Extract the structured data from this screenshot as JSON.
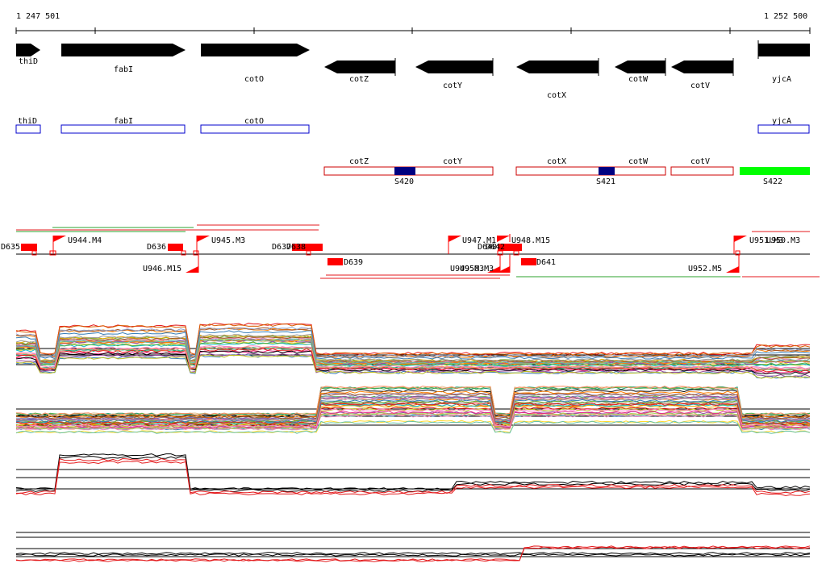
{
  "ruler": {
    "start_label": "1 247 501",
    "end_label": "1 252 500"
  },
  "genes": [
    {
      "name": "thiD",
      "dir": "right"
    },
    {
      "name": "fabI",
      "dir": "right"
    },
    {
      "name": "cotO",
      "dir": "right"
    },
    {
      "name": "cotZ",
      "dir": "left"
    },
    {
      "name": "cotY",
      "dir": "left"
    },
    {
      "name": "cotX",
      "dir": "left"
    },
    {
      "name": "cotW",
      "dir": "left"
    },
    {
      "name": "cotV",
      "dir": "left"
    },
    {
      "name": "yjcA",
      "dir": "right"
    }
  ],
  "blue_boxes": [
    "thiD",
    "fabI",
    "cotO",
    "yjcA"
  ],
  "red_boxes": [
    {
      "labels": [
        "cotZ",
        "cotY"
      ],
      "segment": "S420"
    },
    {
      "labels": [
        "cotX",
        "cotW"
      ],
      "segment": "S421"
    },
    {
      "labels": [
        "cotV"
      ],
      "segment": ""
    }
  ],
  "green_segment": "S422",
  "features_top": [
    "D635",
    "U944.M4",
    "D636",
    "U945.M3",
    "D637",
    "D638",
    "U947.M1",
    "D640",
    "D642",
    "U948.M15",
    "U951.M3",
    "U950.M3"
  ],
  "features_bottom": [
    "U946.M15",
    "D639",
    "U949.M3",
    "U950.M3",
    "D641",
    "U952.M5"
  ],
  "colors": {
    "gene_arrow": "#000000",
    "blue_box": "#0000cc",
    "red_box": "#cc0000",
    "segment_dark": "#000080",
    "segment_green": "#00ff00",
    "feature_red": "#ff0000",
    "line_green": "#2ca02c",
    "line_red": "#e41a1c"
  }
}
